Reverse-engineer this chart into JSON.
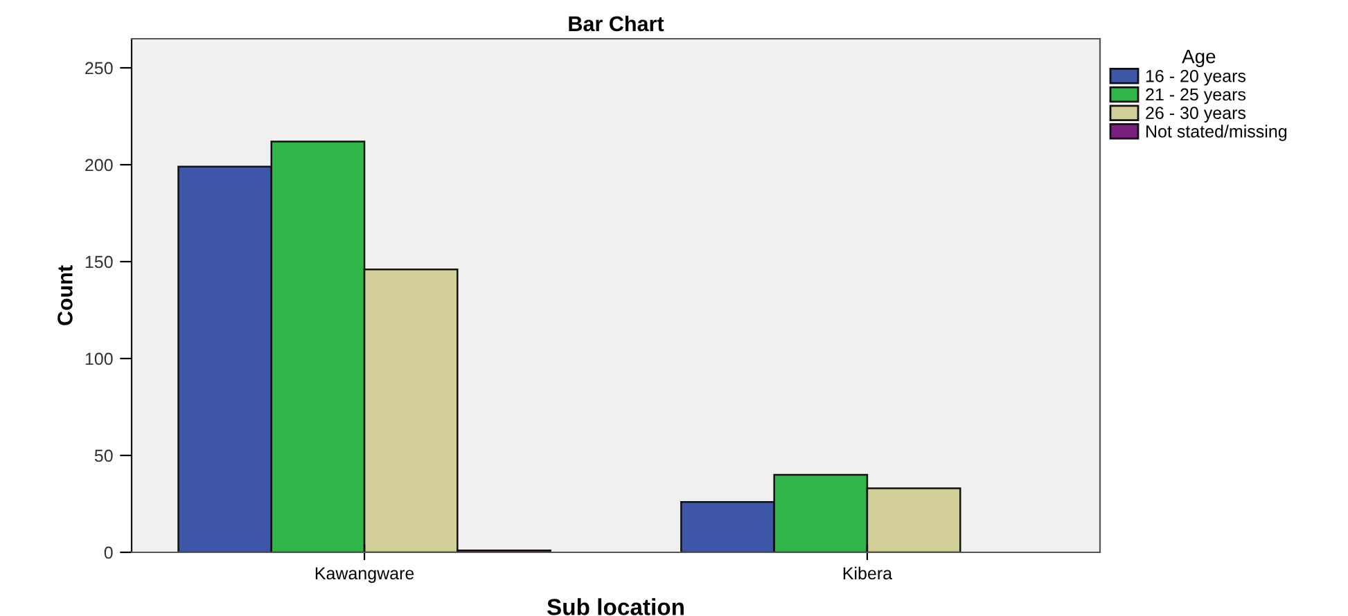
{
  "chart_data": {
    "type": "bar",
    "title": "Bar Chart",
    "xlabel": "Sub location",
    "ylabel": "Count",
    "legend_title": "Age",
    "categories": [
      "Kawangware",
      "Kibera"
    ],
    "series": [
      {
        "name": "16 - 20 years",
        "color": "#3d56a8",
        "values": [
          199,
          26
        ]
      },
      {
        "name": "21 - 25 years",
        "color": "#2fb74a",
        "values": [
          212,
          40
        ]
      },
      {
        "name": "26 - 30 years",
        "color": "#d3cf98",
        "values": [
          146,
          33
        ]
      },
      {
        "name": "Not stated/missing",
        "color": "#7b1f7e",
        "values": [
          1,
          null
        ]
      }
    ],
    "ylim": [
      0,
      265
    ],
    "yticks": [
      0,
      50,
      100,
      150,
      200,
      250
    ],
    "grid": false,
    "legend": "top right"
  }
}
